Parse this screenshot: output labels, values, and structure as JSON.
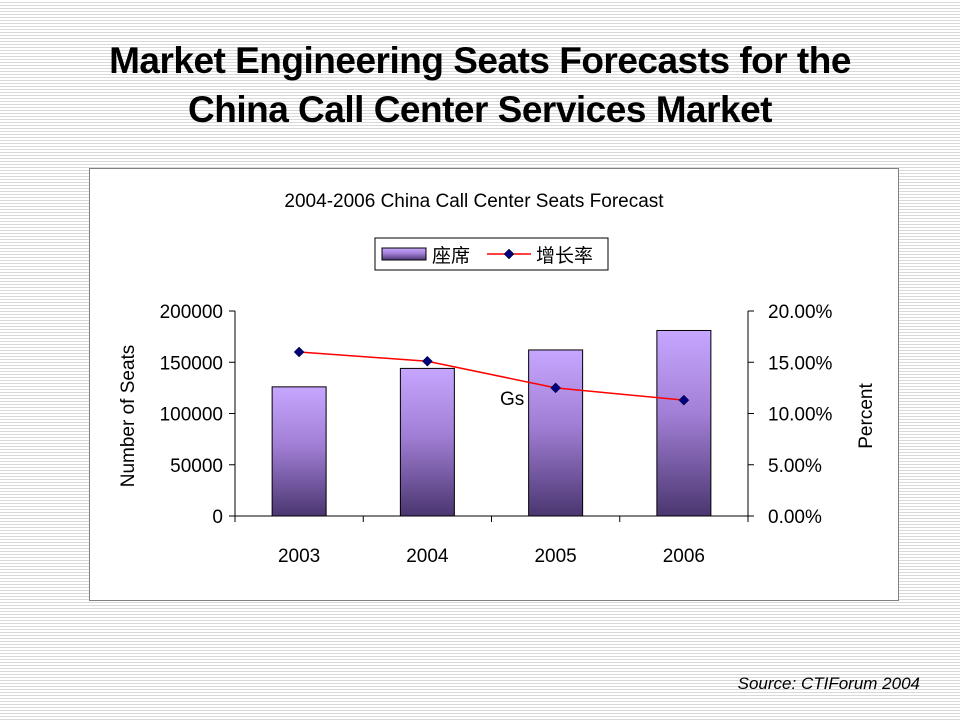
{
  "slide": {
    "title_line1": "Market Engineering Seats Forecasts for the",
    "title_line2": "China Call Center Services Market",
    "source": "Source: CTIForum 2004"
  },
  "chart_data": {
    "type": "bar",
    "title": "2004-2006 China Call Center Seats Forecast",
    "categories": [
      "2003",
      "2004",
      "2005",
      "2006"
    ],
    "series": [
      {
        "name": "座席",
        "type": "bar",
        "axis": "left",
        "values": [
          126000,
          144000,
          162000,
          181000
        ],
        "color": "#b394e6"
      },
      {
        "name": "增长率",
        "type": "line",
        "axis": "right",
        "values": [
          0.16,
          0.151,
          0.125,
          0.113
        ],
        "color": "#ff0000",
        "marker_color": "#000080"
      }
    ],
    "ylabel": "Number of Seats",
    "ylim": [
      0,
      200000
    ],
    "yticks": [
      "0",
      "50000",
      "100000",
      "150000",
      "200000"
    ],
    "y2label": "Percent",
    "y2lim": [
      0,
      0.2
    ],
    "y2ticks": [
      "0.00%",
      "5.00%",
      "10.00%",
      "15.00%",
      "20.00%"
    ],
    "legend": "top",
    "annotation": "Gs",
    "grid": false
  }
}
